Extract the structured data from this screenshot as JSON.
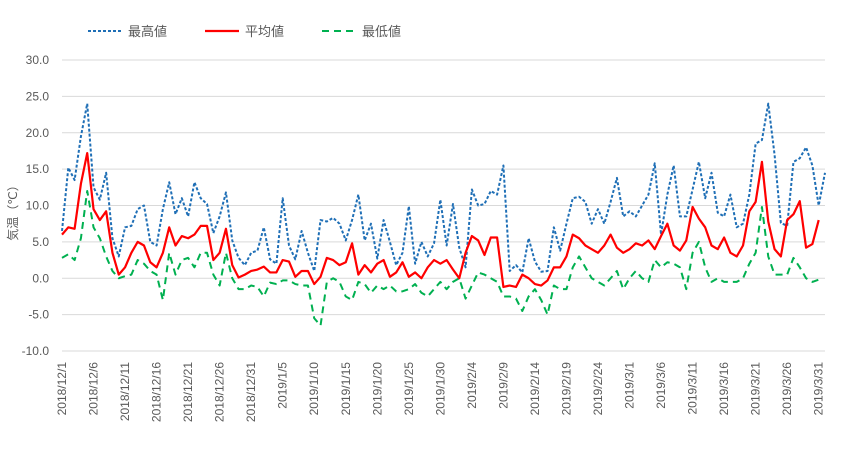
{
  "chart_data": {
    "type": "line",
    "title": "",
    "xlabel": "",
    "ylabel": "気温（℃）",
    "ylim": [
      -10,
      30
    ],
    "yticks": [
      "-10.0",
      "-5.0",
      "0.0",
      "5.0",
      "10.0",
      "15.0",
      "20.0",
      "25.0",
      "30.0"
    ],
    "grid": "horizontal",
    "legend": "top-left",
    "x_start": "2018/12/1",
    "x_end": "2019/3/31",
    "x_tick_step_days": 5,
    "xticks": [
      "2018/12/1",
      "2018/12/6",
      "2018/12/11",
      "2018/12/16",
      "2018/12/21",
      "2018/12/26",
      "2018/12/31",
      "2019/1/5",
      "2019/1/10",
      "2019/1/15",
      "2019/1/20",
      "2019/1/25",
      "2019/1/30",
      "2019/2/4",
      "2019/2/9",
      "2019/2/14",
      "2019/2/19",
      "2019/2/24",
      "2019/3/1",
      "2019/3/6",
      "2019/3/11",
      "2019/3/16",
      "2019/3/21",
      "2019/3/26",
      "2019/3/31"
    ],
    "series": [
      {
        "name": "最高値",
        "color": "#1F6FB6",
        "dash": "dotted",
        "values": [
          6.5,
          15.2,
          13.5,
          19.5,
          24.0,
          12.5,
          10.8,
          14.5,
          5.5,
          3.0,
          7.0,
          7.2,
          9.5,
          10.0,
          5.0,
          4.5,
          9.5,
          13.2,
          8.8,
          11.0,
          8.5,
          13.2,
          11.0,
          10.2,
          6.2,
          8.5,
          11.8,
          5.2,
          2.8,
          1.8,
          3.5,
          3.8,
          7.0,
          2.6,
          2.0,
          11.0,
          4.5,
          2.6,
          6.5,
          3.5,
          1.0,
          8.0,
          7.8,
          8.3,
          7.5,
          5.2,
          8.0,
          11.5,
          5.2,
          7.5,
          2.7,
          8.0,
          5.0,
          1.8,
          3.5,
          9.9,
          2.0,
          5.0,
          3.0,
          4.8,
          10.8,
          4.5,
          10.2,
          4.2,
          1.5,
          12.2,
          10.0,
          10.2,
          12.0,
          11.5,
          15.5,
          1.0,
          1.8,
          0.8,
          5.5,
          2.3,
          0.9,
          1.0,
          7.0,
          3.8,
          7.5,
          11.0,
          11.2,
          10.5,
          7.5,
          9.5,
          7.5,
          10.5,
          13.8,
          8.5,
          9.2,
          8.5,
          10.0,
          11.5,
          15.8,
          6.0,
          11.5,
          15.5,
          8.5,
          8.5,
          12.2,
          16.0,
          11.0,
          14.5,
          9.0,
          8.5,
          11.5,
          7.0,
          7.5,
          11.5,
          18.5,
          19.0,
          24.0,
          17.0,
          7.6,
          7.2,
          16.0,
          16.5,
          18.0,
          15.5,
          10.0,
          14.5
        ]
      },
      {
        "name": "平均値",
        "color": "#FF0000",
        "dash": "solid",
        "values": [
          6.0,
          7.0,
          6.8,
          13.0,
          17.2,
          9.5,
          8.0,
          9.2,
          3.5,
          0.5,
          1.5,
          3.5,
          5.0,
          4.5,
          2.2,
          1.5,
          3.5,
          7.0,
          4.5,
          5.8,
          5.5,
          6.0,
          7.2,
          7.2,
          2.5,
          3.5,
          6.8,
          1.8,
          0.1,
          0.5,
          1.0,
          1.2,
          1.6,
          0.8,
          0.8,
          2.5,
          2.3,
          0.2,
          1.0,
          1.0,
          -0.8,
          0.2,
          2.8,
          2.5,
          1.8,
          2.2,
          4.8,
          0.5,
          1.8,
          0.8,
          2.0,
          2.5,
          0.2,
          0.8,
          2.2,
          0.2,
          0.8,
          0.0,
          1.5,
          2.5,
          2.0,
          2.5,
          1.2,
          0.0,
          3.5,
          5.8,
          5.2,
          3.2,
          5.6,
          5.6,
          -1.2,
          -1.0,
          -1.2,
          0.5,
          0.0,
          -0.8,
          -1.0,
          -0.3,
          1.5,
          1.5,
          3.0,
          6.0,
          5.5,
          4.5,
          4.0,
          3.5,
          4.5,
          6.0,
          4.2,
          3.5,
          4.0,
          4.8,
          4.5,
          5.2,
          4.0,
          5.8,
          7.5,
          4.5,
          3.8,
          5.2,
          9.8,
          8.2,
          7.0,
          4.5,
          4.0,
          5.6,
          3.5,
          3.0,
          4.5,
          9.2,
          10.5,
          16.0,
          7.8,
          4.0,
          3.0,
          8.0,
          8.8,
          10.6,
          4.2,
          4.7,
          8.0
        ]
      },
      {
        "name": "最低値",
        "color": "#00B050",
        "dash": "dashed",
        "values": [
          2.8,
          3.3,
          2.5,
          5.5,
          12.0,
          7.0,
          5.5,
          3.0,
          1.0,
          0.0,
          0.3,
          0.5,
          2.5,
          2.0,
          1.0,
          0.5,
          -3.0,
          3.5,
          0.5,
          2.5,
          2.8,
          1.5,
          3.5,
          3.5,
          0.5,
          -1.0,
          3.5,
          0.0,
          -1.5,
          -1.5,
          -1.0,
          -1.2,
          -2.5,
          -0.6,
          -0.8,
          -0.3,
          -0.3,
          -0.8,
          -1.0,
          -1.0,
          -5.5,
          -6.5,
          -0.5,
          0.0,
          -0.5,
          -2.5,
          -3.0,
          -0.5,
          -0.8,
          -2.0,
          -1.0,
          -1.5,
          -1.0,
          -1.8,
          -1.8,
          -1.5,
          -0.8,
          -2.0,
          -2.5,
          -1.5,
          -0.5,
          -1.5,
          -0.5,
          0.0,
          -2.8,
          -1.0,
          0.8,
          0.5,
          0.0,
          -0.5,
          -2.5,
          -2.5,
          -2.8,
          -4.5,
          -2.5,
          -1.5,
          -3.0,
          -5.0,
          -1.0,
          -1.5,
          -1.5,
          1.5,
          3.0,
          1.5,
          0.0,
          -0.5,
          -1.0,
          0.0,
          1.0,
          -1.5,
          0.0,
          1.0,
          0.0,
          -0.5,
          2.5,
          1.5,
          2.2,
          2.0,
          1.5,
          -1.5,
          3.5,
          5.0,
          1.5,
          -0.5,
          0.0,
          -0.5,
          -0.5,
          -0.5,
          0.0,
          2.0,
          3.5,
          9.8,
          3.0,
          0.5,
          0.5,
          0.5,
          2.8,
          1.5,
          0.0,
          -0.5,
          -0.2
        ]
      }
    ]
  }
}
